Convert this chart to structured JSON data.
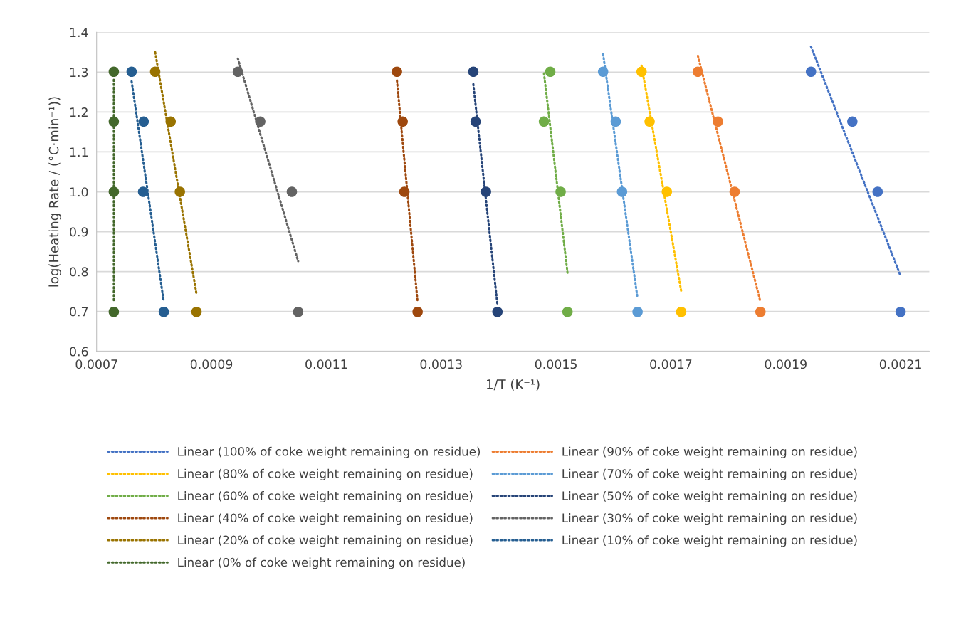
{
  "chart_data": {
    "type": "scatter",
    "xlabel": "1/T (K⁻¹)",
    "ylabel": "log(Heating Rate / (°C·min⁻¹))",
    "xlim": [
      0.0007,
      0.00215
    ],
    "xticks": [
      0.0007,
      0.0009,
      0.0011,
      0.0013,
      0.0015,
      0.0017,
      0.0019,
      0.0021
    ],
    "ylim": [
      0.6,
      1.4
    ],
    "yticks": [
      0.6,
      0.7,
      0.8,
      0.9,
      {
        "value": 1.0,
        "label": "1.0"
      },
      1.1,
      1.2,
      1.3,
      1.4
    ],
    "grid": "y",
    "legend": "bottom",
    "marker": "circle",
    "series": [
      {
        "color": "#4472c4",
        "x": [
          0.001944,
          0.002016,
          0.00206,
          0.0021
        ],
        "values": [
          1.301,
          1.176,
          1.0,
          0.699
        ]
      },
      {
        "color": "#ed7d31",
        "x": [
          0.001747,
          0.001782,
          0.001811,
          0.001856
        ],
        "values": [
          1.301,
          1.176,
          1.0,
          0.699
        ]
      },
      {
        "color": "#ffc000",
        "x": [
          0.001649,
          0.001663,
          0.001693,
          0.001718
        ],
        "values": [
          1.301,
          1.176,
          1.0,
          0.699
        ]
      },
      {
        "color": "#5b9bd5",
        "x": [
          0.001582,
          0.001604,
          0.001615,
          0.001642
        ],
        "values": [
          1.301,
          1.176,
          1.0,
          0.699
        ]
      },
      {
        "color": "#70ad47",
        "x": [
          0.00149,
          0.001479,
          0.001508,
          0.00152
        ],
        "values": [
          1.301,
          1.176,
          1.0,
          0.699
        ]
      },
      {
        "color": "#264478",
        "x": [
          0.001356,
          0.00136,
          0.001378,
          0.001398
        ],
        "values": [
          1.301,
          1.176,
          1.0,
          0.699
        ]
      },
      {
        "color": "#9e480e",
        "x": [
          0.001223,
          0.001233,
          0.001236,
          0.001259
        ],
        "values": [
          1.301,
          1.176,
          1.0,
          0.699
        ]
      },
      {
        "color": "#636363",
        "x": [
          0.000946,
          0.000985,
          0.00104,
          0.001051
        ],
        "values": [
          1.301,
          1.176,
          1.0,
          0.699
        ]
      },
      {
        "color": "#997300",
        "x": [
          0.000802,
          0.000829,
          0.000845,
          0.000874
        ],
        "values": [
          1.301,
          1.176,
          1.0,
          0.699
        ]
      },
      {
        "color": "#255e91",
        "x": [
          0.000761,
          0.000782,
          0.000781,
          0.000817
        ],
        "values": [
          1.301,
          1.176,
          1.0,
          0.699
        ]
      },
      {
        "color": "#43682b",
        "x": [
          0.00073,
          0.00073,
          0.00073,
          0.00073
        ],
        "values": [
          1.301,
          1.176,
          1.0,
          0.699
        ]
      },
      {
        "type": "line",
        "line_style": "dotted",
        "marker": "none",
        "name": "Linear (100% of coke weight remaining on residue)",
        "color": "#4472c4",
        "x": [
          0.001944,
          0.0021
        ],
        "values": [
          1.364,
          0.789
        ]
      },
      {
        "type": "line",
        "line_style": "dotted",
        "marker": "none",
        "name": "Linear (90% of coke weight remaining on residue)",
        "color": "#ed7d31",
        "x": [
          0.001747,
          0.001856
        ],
        "values": [
          1.341,
          0.724
        ]
      },
      {
        "type": "line",
        "line_style": "dotted",
        "marker": "none",
        "name": "Linear (80% of coke weight remaining on residue)",
        "color": "#ffc000",
        "x": [
          0.001649,
          0.001718
        ],
        "values": [
          1.316,
          0.751
        ]
      },
      {
        "type": "line",
        "line_style": "dotted",
        "marker": "none",
        "name": "Linear (70% of coke weight remaining on residue)",
        "color": "#5b9bd5",
        "x": [
          0.001582,
          0.001642
        ],
        "values": [
          1.345,
          0.733
        ]
      },
      {
        "type": "line",
        "line_style": "dotted",
        "marker": "none",
        "name": "Linear (60% of coke weight remaining on residue)",
        "color": "#70ad47",
        "x": [
          0.001479,
          0.00152
        ],
        "values": [
          1.297,
          0.797
        ]
      },
      {
        "type": "line",
        "line_style": "dotted",
        "marker": "none",
        "name": "Linear (50% of coke weight remaining on residue)",
        "color": "#264478",
        "x": [
          0.001356,
          0.001398
        ],
        "values": [
          1.27,
          0.717
        ]
      },
      {
        "type": "line",
        "line_style": "dotted",
        "marker": "none",
        "name": "Linear (40% of coke weight remaining on residue)",
        "color": "#9e480e",
        "x": [
          0.001223,
          0.001259
        ],
        "values": [
          1.279,
          0.723
        ]
      },
      {
        "type": "line",
        "line_style": "dotted",
        "marker": "none",
        "name": "Linear (30% of coke weight remaining on residue)",
        "color": "#636363",
        "x": [
          0.000946,
          0.001051
        ],
        "values": [
          1.334,
          0.826
        ]
      },
      {
        "type": "line",
        "line_style": "dotted",
        "marker": "none",
        "name": "Linear (20% of coke weight remaining on residue)",
        "color": "#997300",
        "x": [
          0.000802,
          0.000874
        ],
        "values": [
          1.35,
          0.744
        ]
      },
      {
        "type": "line",
        "line_style": "dotted",
        "marker": "none",
        "name": "Linear (10% of coke weight remaining on residue)",
        "color": "#255e91",
        "x": [
          0.000761,
          0.000817
        ],
        "values": [
          1.277,
          0.724
        ]
      },
      {
        "type": "line",
        "line_style": "dotted",
        "marker": "none",
        "name": "Linear (0% of coke weight remaining on residue)",
        "color": "#43682b",
        "x": [
          0.00073,
          0.00073
        ],
        "values": [
          1.281,
          0.723
        ]
      }
    ]
  }
}
